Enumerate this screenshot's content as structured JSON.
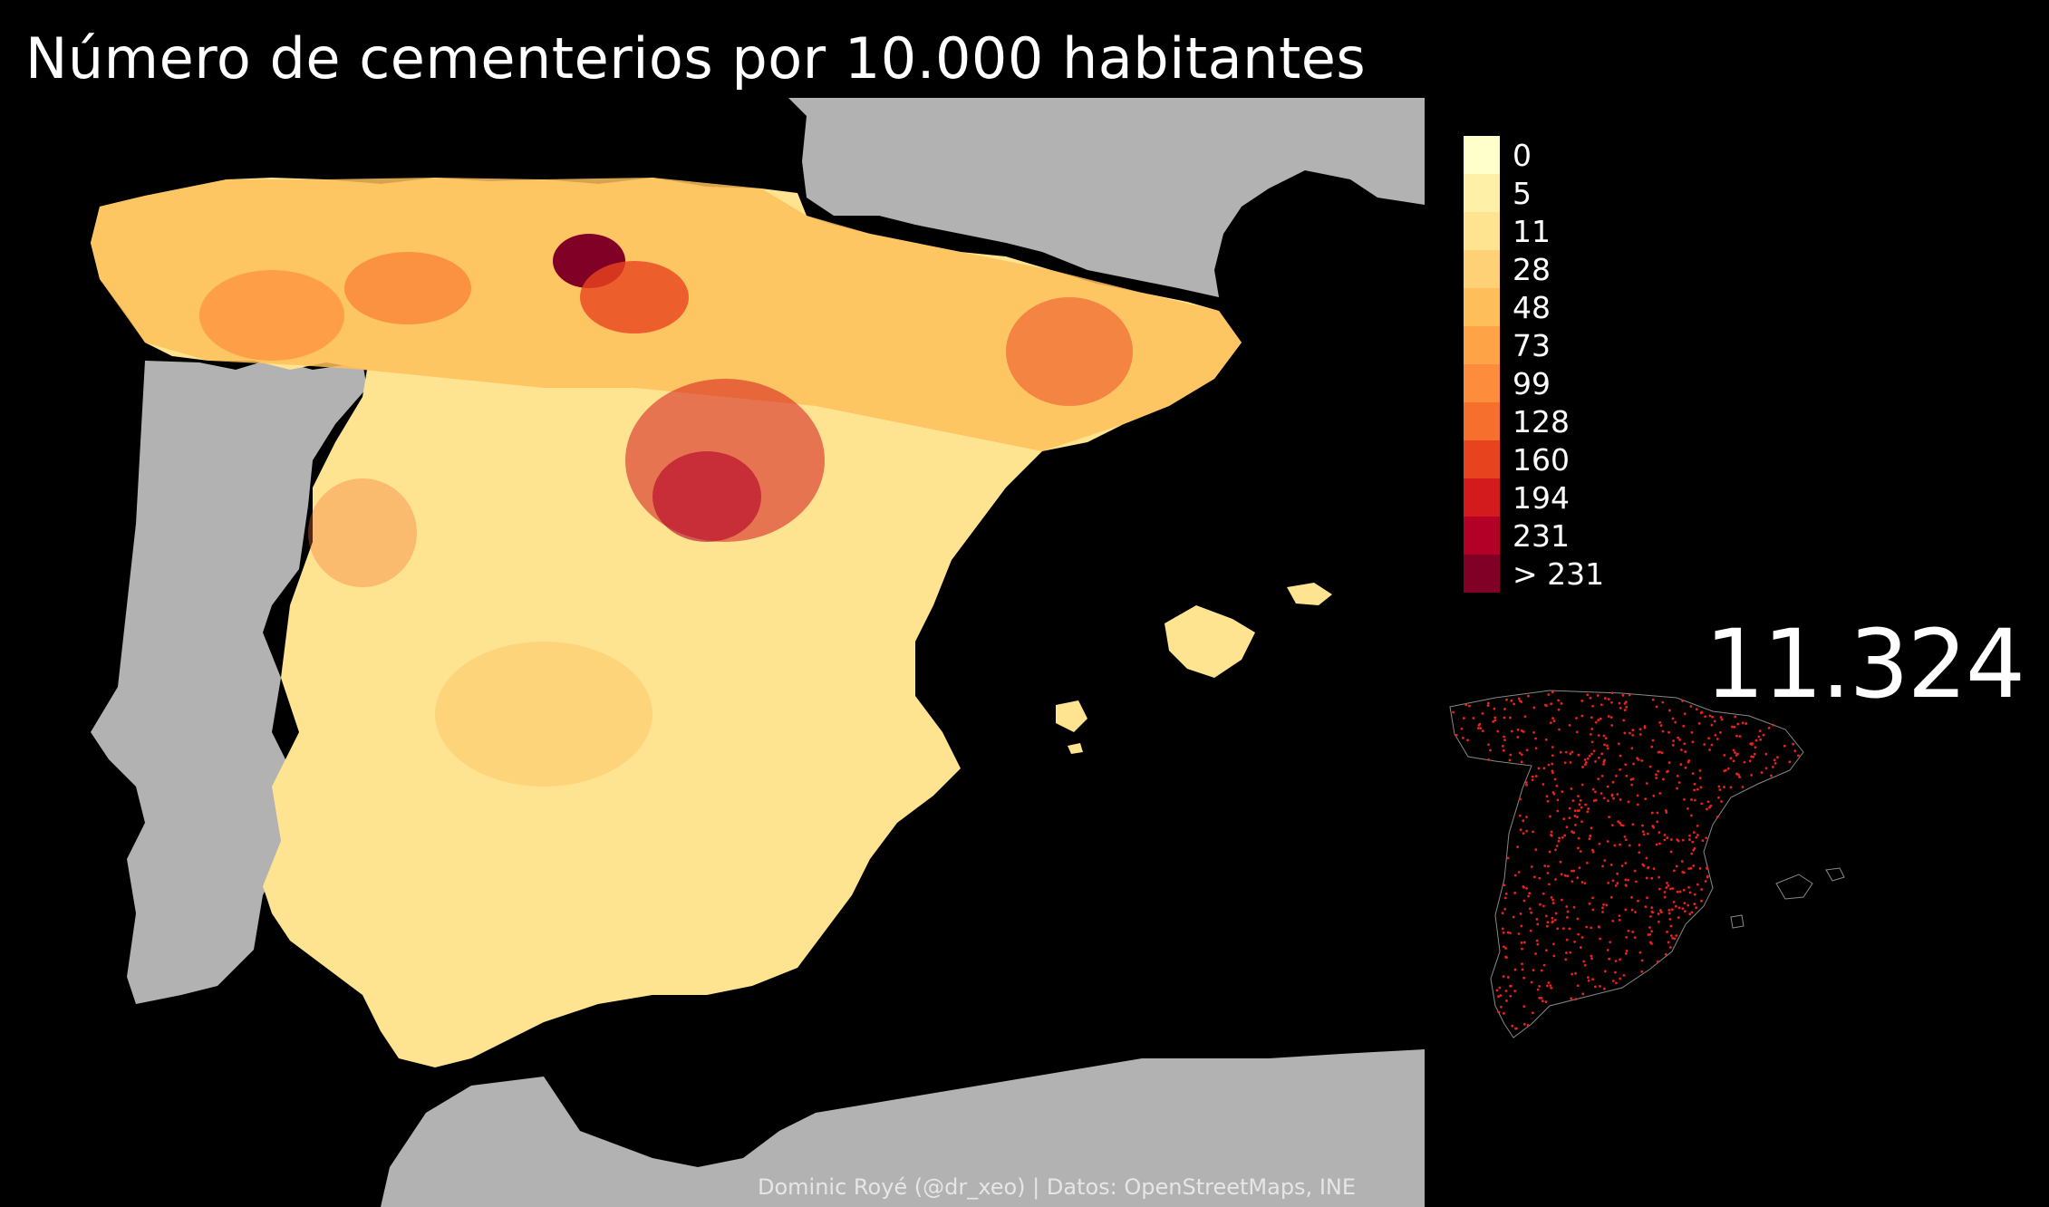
{
  "title": "Número de cementerios por 10.000 habitantes",
  "legend": {
    "items": [
      {
        "label": "0",
        "color": "#ffffcc"
      },
      {
        "label": "5",
        "color": "#fff0a8"
      },
      {
        "label": "11",
        "color": "#fee391"
      },
      {
        "label": "28",
        "color": "#fed176"
      },
      {
        "label": "48",
        "color": "#febf5a"
      },
      {
        "label": "73",
        "color": "#fea346"
      },
      {
        "label": "99",
        "color": "#fd8d3c"
      },
      {
        "label": "128",
        "color": "#f66f2d"
      },
      {
        "label": "160",
        "color": "#e8431f"
      },
      {
        "label": "194",
        "color": "#d31a1c"
      },
      {
        "label": "231",
        "color": "#b30026"
      },
      {
        "label": "> 231",
        "color": "#800026"
      }
    ]
  },
  "total_count": "11.324",
  "caption": "Dominic Royé (@dr_xeo) | Datos: OpenStreetMaps, INE",
  "colors": {
    "background": "#000000",
    "neighbor_land": "#b2b2b2",
    "inset_points": "#e8231c"
  }
}
